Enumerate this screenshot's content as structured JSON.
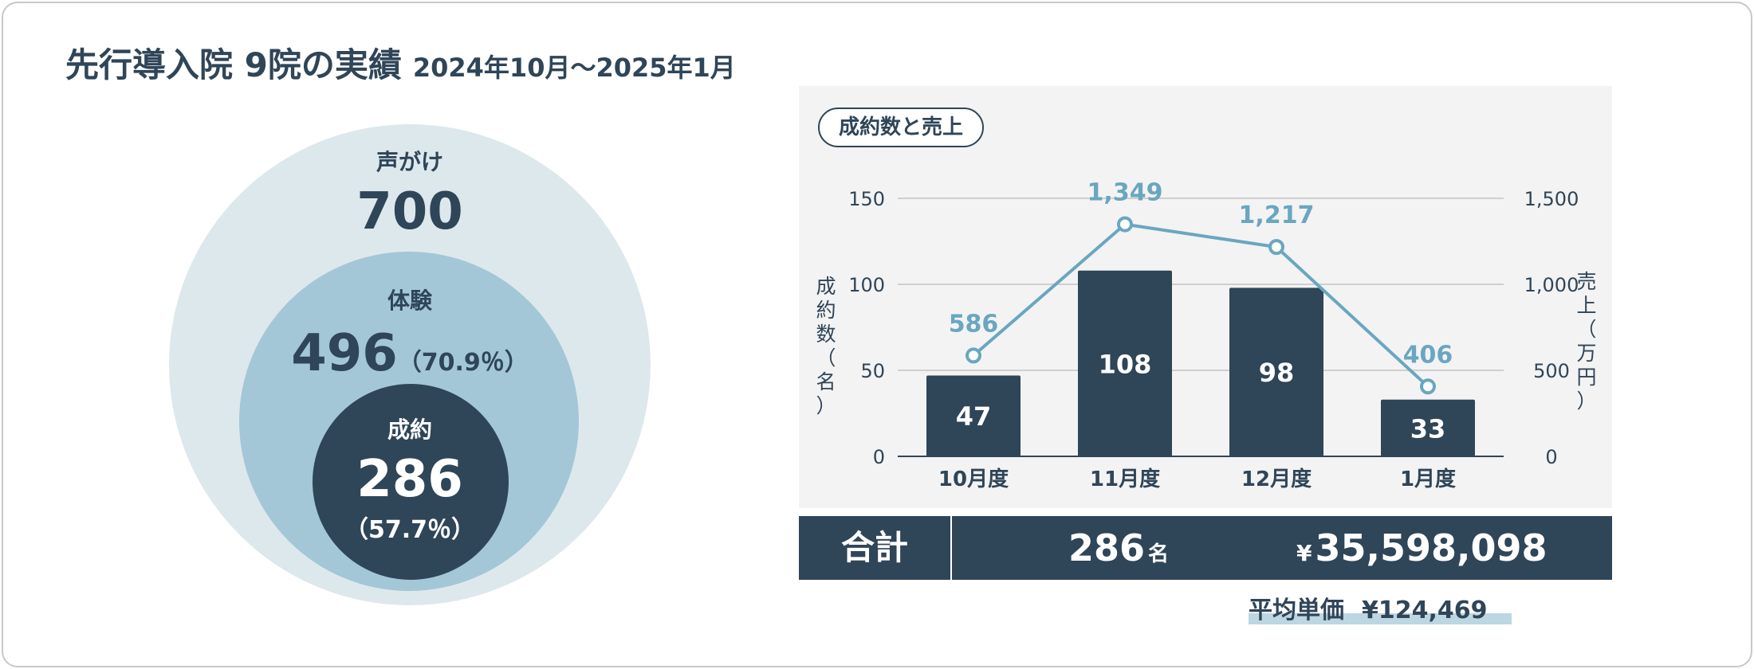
{
  "header": {
    "title": "先行導入院 9院の実績",
    "period": "2024年10月～2025年1月"
  },
  "funnel": {
    "outer": {
      "label": "声がけ",
      "value": "700"
    },
    "middle": {
      "label": "体験",
      "value": "496",
      "pct": "（70.9％）"
    },
    "inner": {
      "label": "成約",
      "value": "286",
      "pct": "（57.7％）"
    }
  },
  "colors": {
    "navy": "#2f4558",
    "line": "#6aa6c0",
    "outer_circle": "#dde8ed",
    "middle_circle": "#a3c7d6",
    "panel": "#f3f3f3"
  },
  "chart_data": {
    "type": "bar+line",
    "title": "成約数と売上",
    "categories": [
      "10月度",
      "11月度",
      "12月度",
      "1月度"
    ],
    "series": [
      {
        "name": "成約数",
        "kind": "bar",
        "axis": "left",
        "values": [
          47,
          108,
          98,
          33
        ],
        "labels": [
          "47",
          "108",
          "98",
          "33"
        ]
      },
      {
        "name": "売上",
        "kind": "line",
        "axis": "right",
        "values": [
          586,
          1349,
          1217,
          406
        ],
        "labels": [
          "586",
          "1,349",
          "1,217",
          "406"
        ]
      }
    ],
    "ylabel": "成約数（名）",
    "y2label": "売上（万円）",
    "ylim": [
      0,
      150
    ],
    "y2lim": [
      0,
      1500
    ],
    "yticks": [
      0,
      50,
      100,
      150
    ],
    "ytick_labels": [
      "0",
      "50",
      "100",
      "150"
    ],
    "y2ticks": [
      0,
      500,
      1000,
      1500
    ],
    "y2tick_labels": [
      "0",
      "500",
      "1,000",
      "1,500"
    ],
    "grid": true
  },
  "totals": {
    "label": "合計",
    "count": "286",
    "count_unit": "名",
    "sales_symbol": "¥",
    "sales": "35,598,098",
    "avg_label": "平均単価",
    "avg_value": "¥124,469"
  }
}
